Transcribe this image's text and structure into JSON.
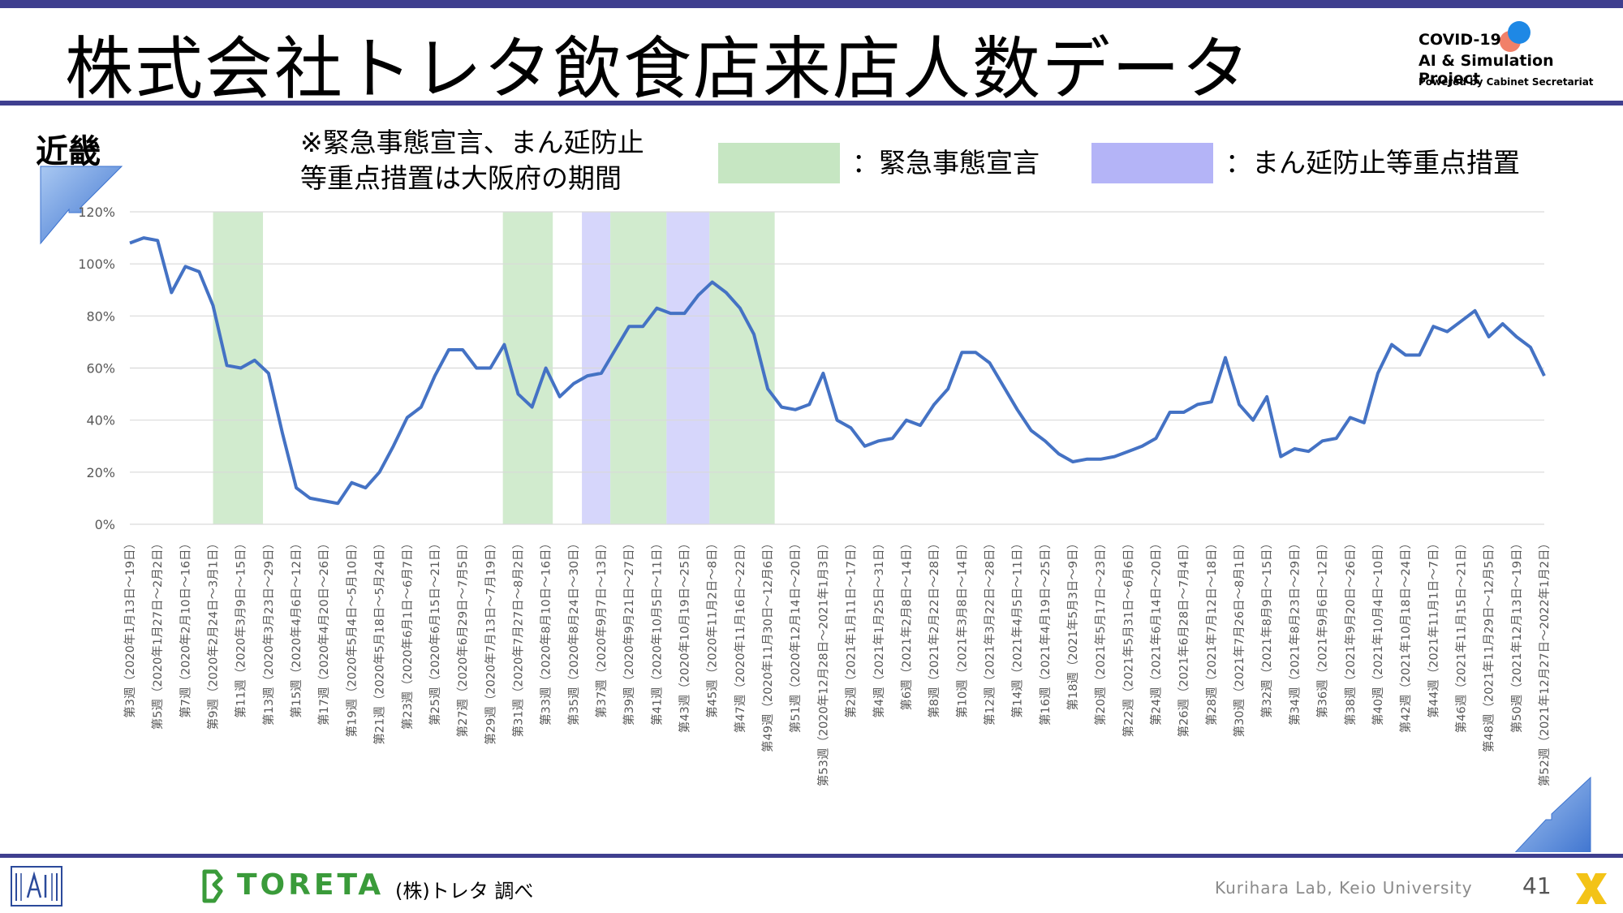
{
  "header": {
    "title": "株式会社トレタ飲食店来店人数データ",
    "covid_logo_line1": "COVID-19",
    "covid_logo_line2": "AI & Simulation Project",
    "covid_logo_line3": "Powered by Cabinet Secretariat"
  },
  "region_label": "近畿",
  "note": {
    "line1": "※緊急事態宣言、まん延防止",
    "line2": "等重点措置は大阪府の期間"
  },
  "legend": {
    "emergency_label": "：緊急事態宣言",
    "emergency_color": "#c6e6c2",
    "priority_label": "：まん延防止等重点措置",
    "priority_color": "#b4b4f7"
  },
  "footer": {
    "toreta_logo": "TORETA",
    "source": "(株)トレタ 調べ",
    "lab": "Kurihara Lab, Keio University",
    "page": "41"
  },
  "chart_data": {
    "type": "line",
    "line_color": "#4472c4",
    "ylim": [
      0,
      120
    ],
    "yticks": [
      "0%",
      "20%",
      "40%",
      "60%",
      "80%",
      "100%",
      "120%"
    ],
    "grid": true,
    "x_labels": [
      "第3週（2020年1月13日～19日）",
      "第5週（2020年1月27日～2月2日）",
      "第7週（2020年2月10日～16日）",
      "第9週（2020年2月24日～3月1日）",
      "第11週（2020年3月9日～15日）",
      "第13週（2020年3月23日～29日）",
      "第15週（2020年4月6日～12日）",
      "第17週（2020年4月20日～26日）",
      "第19週（2020年5月4日～5月10日）",
      "第21週（2020年5月18日～5月24日）",
      "第23週（2020年6月1日～6月7日）",
      "第25週（2020年6月15日～21日）",
      "第27週（2020年6月29日～7月5日）",
      "第29週（2020年7月13日～7月19日）",
      "第31週（2020年7月27日～8月2日）",
      "第33週（2020年8月10日～16日）",
      "第35週（2020年8月24日～30日）",
      "第37週（2020年9月7日～13日）",
      "第39週（2020年9月21日～27日）",
      "第41週（2020年10月5日～11日）",
      "第43週（2020年10月19日～25日）",
      "第45週（2020年11月2日～8日）",
      "第47週（2020年11月16日～22日）",
      "第49週（2020年11月30日～12月6日）",
      "第51週（2020年12月14日～20日）",
      "第53週（2020年12月28日～2021年1月3日）",
      "第2週（2021年1月11日～17日）",
      "第4週（2021年1月25日～31日）",
      "第6週（2021年2月8日～14日）",
      "第8週（2021年2月22日～28日）",
      "第10週（2021年3月8日～14日）",
      "第12週（2021年3月22日～28日）",
      "第14週（2021年4月5日～11日）",
      "第16週（2021年4月19日～25日）",
      "第18週（2021年5月3日～9日）",
      "第20週（2021年5月17日～23日）",
      "第22週（2021年5月31日～6月6日）",
      "第24週（2021年6月14日～20日）",
      "第26週（2021年6月28日～7月4日）",
      "第28週（2021年7月12日～18日）",
      "第30週（2021年7月26日～8月1日）",
      "第32週（2021年8月9日～15日）",
      "第34週（2021年8月23日～29日）",
      "第36週（2021年9月6日～12日）",
      "第38週（2021年9月20日～26日）",
      "第40週（2021年10月4日～10日）",
      "第42週（2021年10月18日～24日）",
      "第44週（2021年11月1日～7日）",
      "第46週（2021年11月15日～21日）",
      "第48週（2021年11月29日～12月5日）",
      "第50週（2021年12月13日～19日）",
      "第52週（2021年12月27日～2022年1月2日）"
    ],
    "values": [
      108,
      110,
      109,
      89,
      99,
      97,
      84,
      61,
      60,
      63,
      58,
      35,
      14,
      10,
      9,
      8,
      16,
      14,
      20,
      30,
      41,
      45,
      57,
      67,
      67,
      60,
      60,
      69,
      50,
      45,
      60,
      49,
      54,
      57,
      58,
      67,
      76,
      76,
      83,
      81,
      81,
      88,
      93,
      89,
      83,
      73,
      52,
      45,
      44,
      46,
      58,
      40,
      37,
      30,
      32,
      33,
      40,
      38,
      46,
      52,
      66,
      66,
      62,
      53,
      44,
      36,
      32,
      27,
      24,
      25,
      25,
      26,
      28,
      30,
      33,
      43,
      43,
      46,
      47,
      64,
      46,
      40,
      49,
      26,
      29,
      28,
      32,
      33,
      41,
      39,
      58,
      69,
      65,
      65,
      76,
      74,
      78,
      82,
      72,
      77,
      72,
      68,
      57
    ],
    "bands": [
      {
        "type": "emergency",
        "start": 6.0,
        "end": 9.6
      },
      {
        "type": "emergency",
        "start": 26.9,
        "end": 30.5
      },
      {
        "type": "priority",
        "start": 32.6,
        "end": 34.65
      },
      {
        "type": "emergency",
        "start": 34.65,
        "end": 38.7
      },
      {
        "type": "priority",
        "start": 38.7,
        "end": 41.8
      },
      {
        "type": "emergency",
        "start": 41.8,
        "end": 46.5
      }
    ]
  }
}
